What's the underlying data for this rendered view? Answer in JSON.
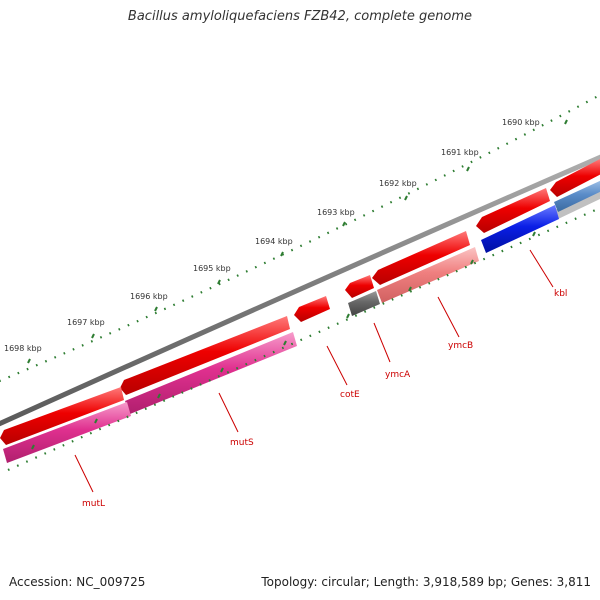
{
  "title": "Bacillus amyloliquefaciens FZB42, complete genome",
  "footer": {
    "accession": "Accession: NC_009725",
    "topology": "Topology: circular; Length: 3,918,589 bp; Genes: 3,811"
  },
  "colors": {
    "backbone": "#8a8a8a",
    "tick": "#2e7d32",
    "gene_red": "#ee0000",
    "gene_pink": "#e0308f",
    "gene_lightred": "#f08080",
    "gene_blue": "#0a1ee6",
    "gene_steel": "#5a8cc8",
    "gene_gray": "#666666",
    "label": "#cc0000"
  },
  "kbp_labels": [
    "1690 kbp",
    "1691 kbp",
    "1692 kbp",
    "1693 kbp",
    "1694 kbp",
    "1695 kbp",
    "1696 kbp",
    "1697 kbp",
    "1698 kbp"
  ],
  "gene_labels": [
    "kbl",
    "ymcB",
    "ymcA",
    "cotE",
    "mutS",
    "mutL"
  ]
}
